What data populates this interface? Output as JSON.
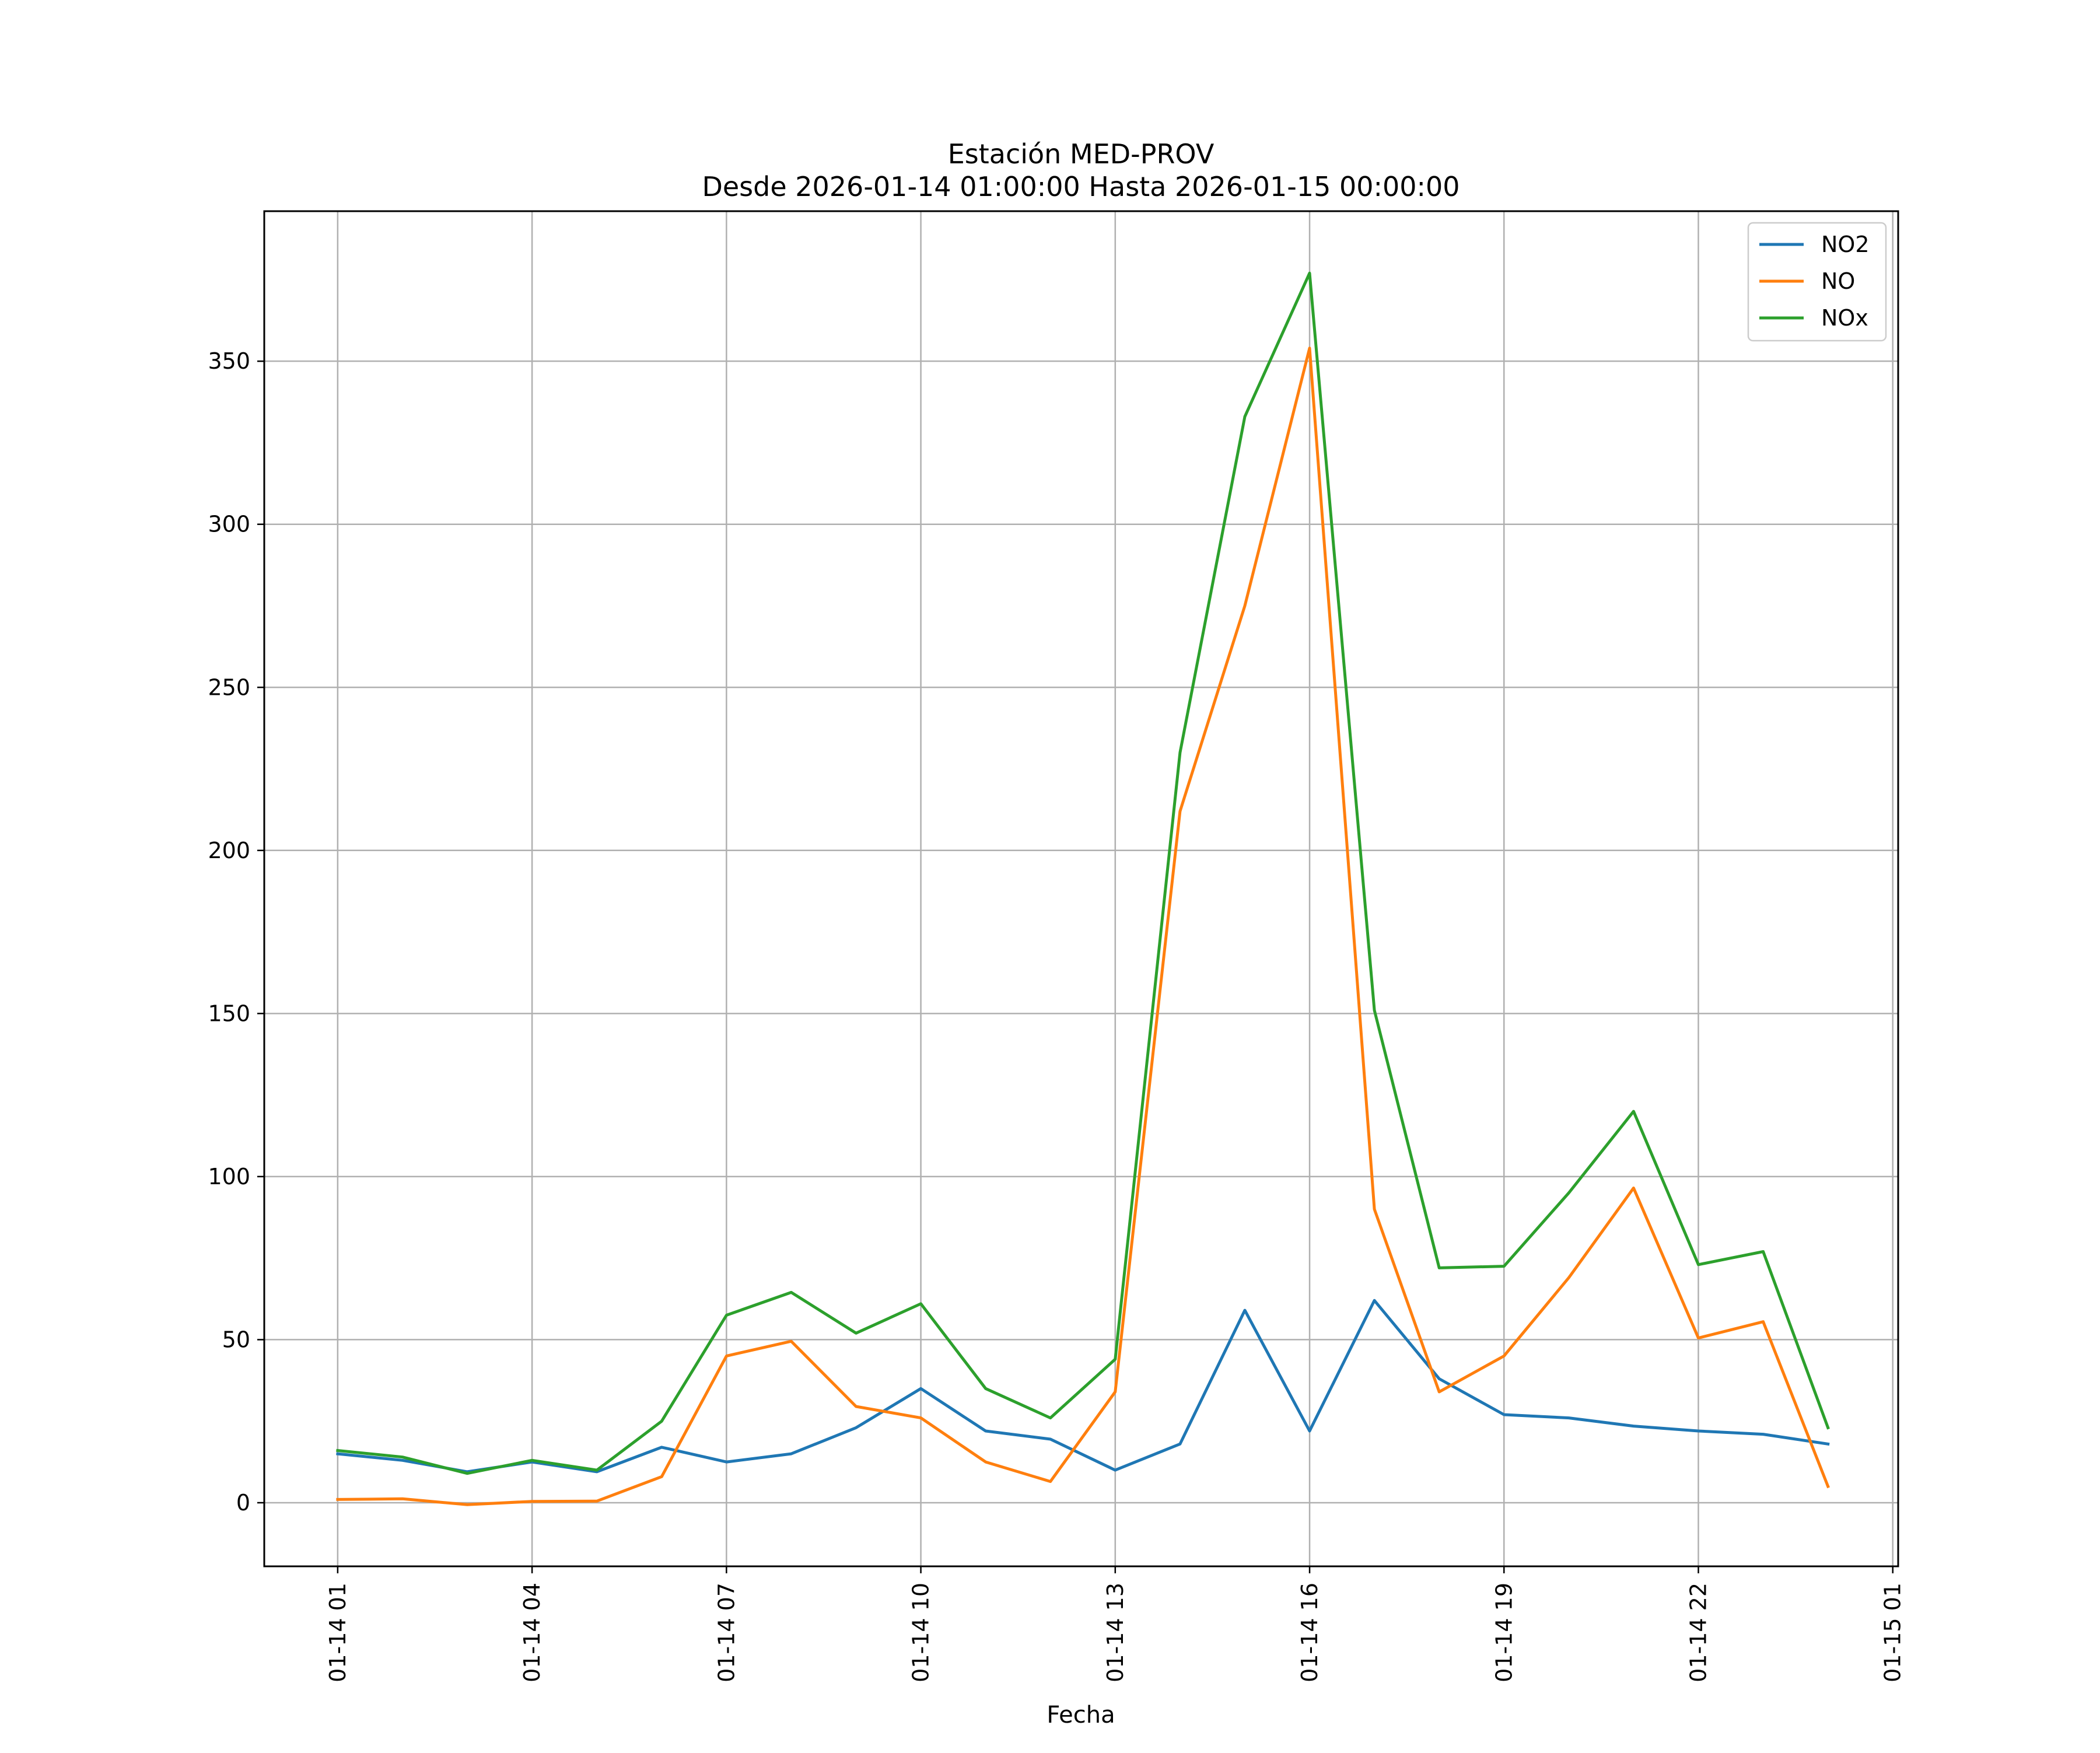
{
  "chart_data": {
    "type": "line",
    "title": "Estación MED-PROV",
    "subtitle": "Desde 2026-01-14 01:00:00 Hasta 2026-01-15 00:00:00",
    "xlabel": "Fecha",
    "ylabel": "",
    "x": [
      "2026-01-14 01:00",
      "2026-01-14 02:00",
      "2026-01-14 03:00",
      "2026-01-14 04:00",
      "2026-01-14 05:00",
      "2026-01-14 06:00",
      "2026-01-14 07:00",
      "2026-01-14 08:00",
      "2026-01-14 09:00",
      "2026-01-14 10:00",
      "2026-01-14 11:00",
      "2026-01-14 12:00",
      "2026-01-14 13:00",
      "2026-01-14 14:00",
      "2026-01-14 15:00",
      "2026-01-14 16:00",
      "2026-01-14 17:00",
      "2026-01-14 18:00",
      "2026-01-14 19:00",
      "2026-01-14 20:00",
      "2026-01-14 21:00",
      "2026-01-14 22:00",
      "2026-01-14 23:00",
      "2026-01-15 00:00"
    ],
    "xlim": [
      "2026-01-13 23:52",
      "2026-01-15 01:05"
    ],
    "ylim": [
      -19.5,
      396
    ],
    "x_ticks": [
      {
        "value": "2026-01-14 01:00",
        "label": "01-14 01"
      },
      {
        "value": "2026-01-14 04:00",
        "label": "01-14 04"
      },
      {
        "value": "2026-01-14 07:00",
        "label": "01-14 07"
      },
      {
        "value": "2026-01-14 10:00",
        "label": "01-14 10"
      },
      {
        "value": "2026-01-14 13:00",
        "label": "01-14 13"
      },
      {
        "value": "2026-01-14 16:00",
        "label": "01-14 16"
      },
      {
        "value": "2026-01-14 19:00",
        "label": "01-14 19"
      },
      {
        "value": "2026-01-14 22:00",
        "label": "01-14 22"
      },
      {
        "value": "2026-01-15 01:00",
        "label": "01-15 01"
      }
    ],
    "y_ticks": [
      0,
      50,
      100,
      150,
      200,
      250,
      300,
      350
    ],
    "grid": true,
    "legend_position": "top-right",
    "series": [
      {
        "name": "NO2",
        "color": "#1f77b4",
        "values": [
          15,
          13,
          9.5,
          12.5,
          9.5,
          17,
          12.5,
          15,
          23,
          35,
          22,
          19.5,
          10,
          18,
          59,
          22,
          62,
          38,
          27,
          26,
          23.5,
          22,
          21,
          18
        ]
      },
      {
        "name": "NO",
        "color": "#ff7f0e",
        "values": [
          1,
          1.2,
          -0.6,
          0.4,
          0.5,
          8,
          45,
          49.5,
          29.5,
          26,
          12.5,
          6.5,
          34,
          212,
          275,
          354,
          90,
          34,
          45,
          69,
          96.5,
          50.5,
          55.5,
          5
        ]
      },
      {
        "name": "NOx",
        "color": "#2ca02c",
        "values": [
          16,
          14,
          9,
          13,
          10,
          25,
          57.5,
          64.5,
          52,
          61,
          35,
          26,
          44,
          230,
          333,
          377,
          151,
          72,
          72.5,
          95,
          120,
          73,
          77,
          23
        ]
      }
    ]
  }
}
